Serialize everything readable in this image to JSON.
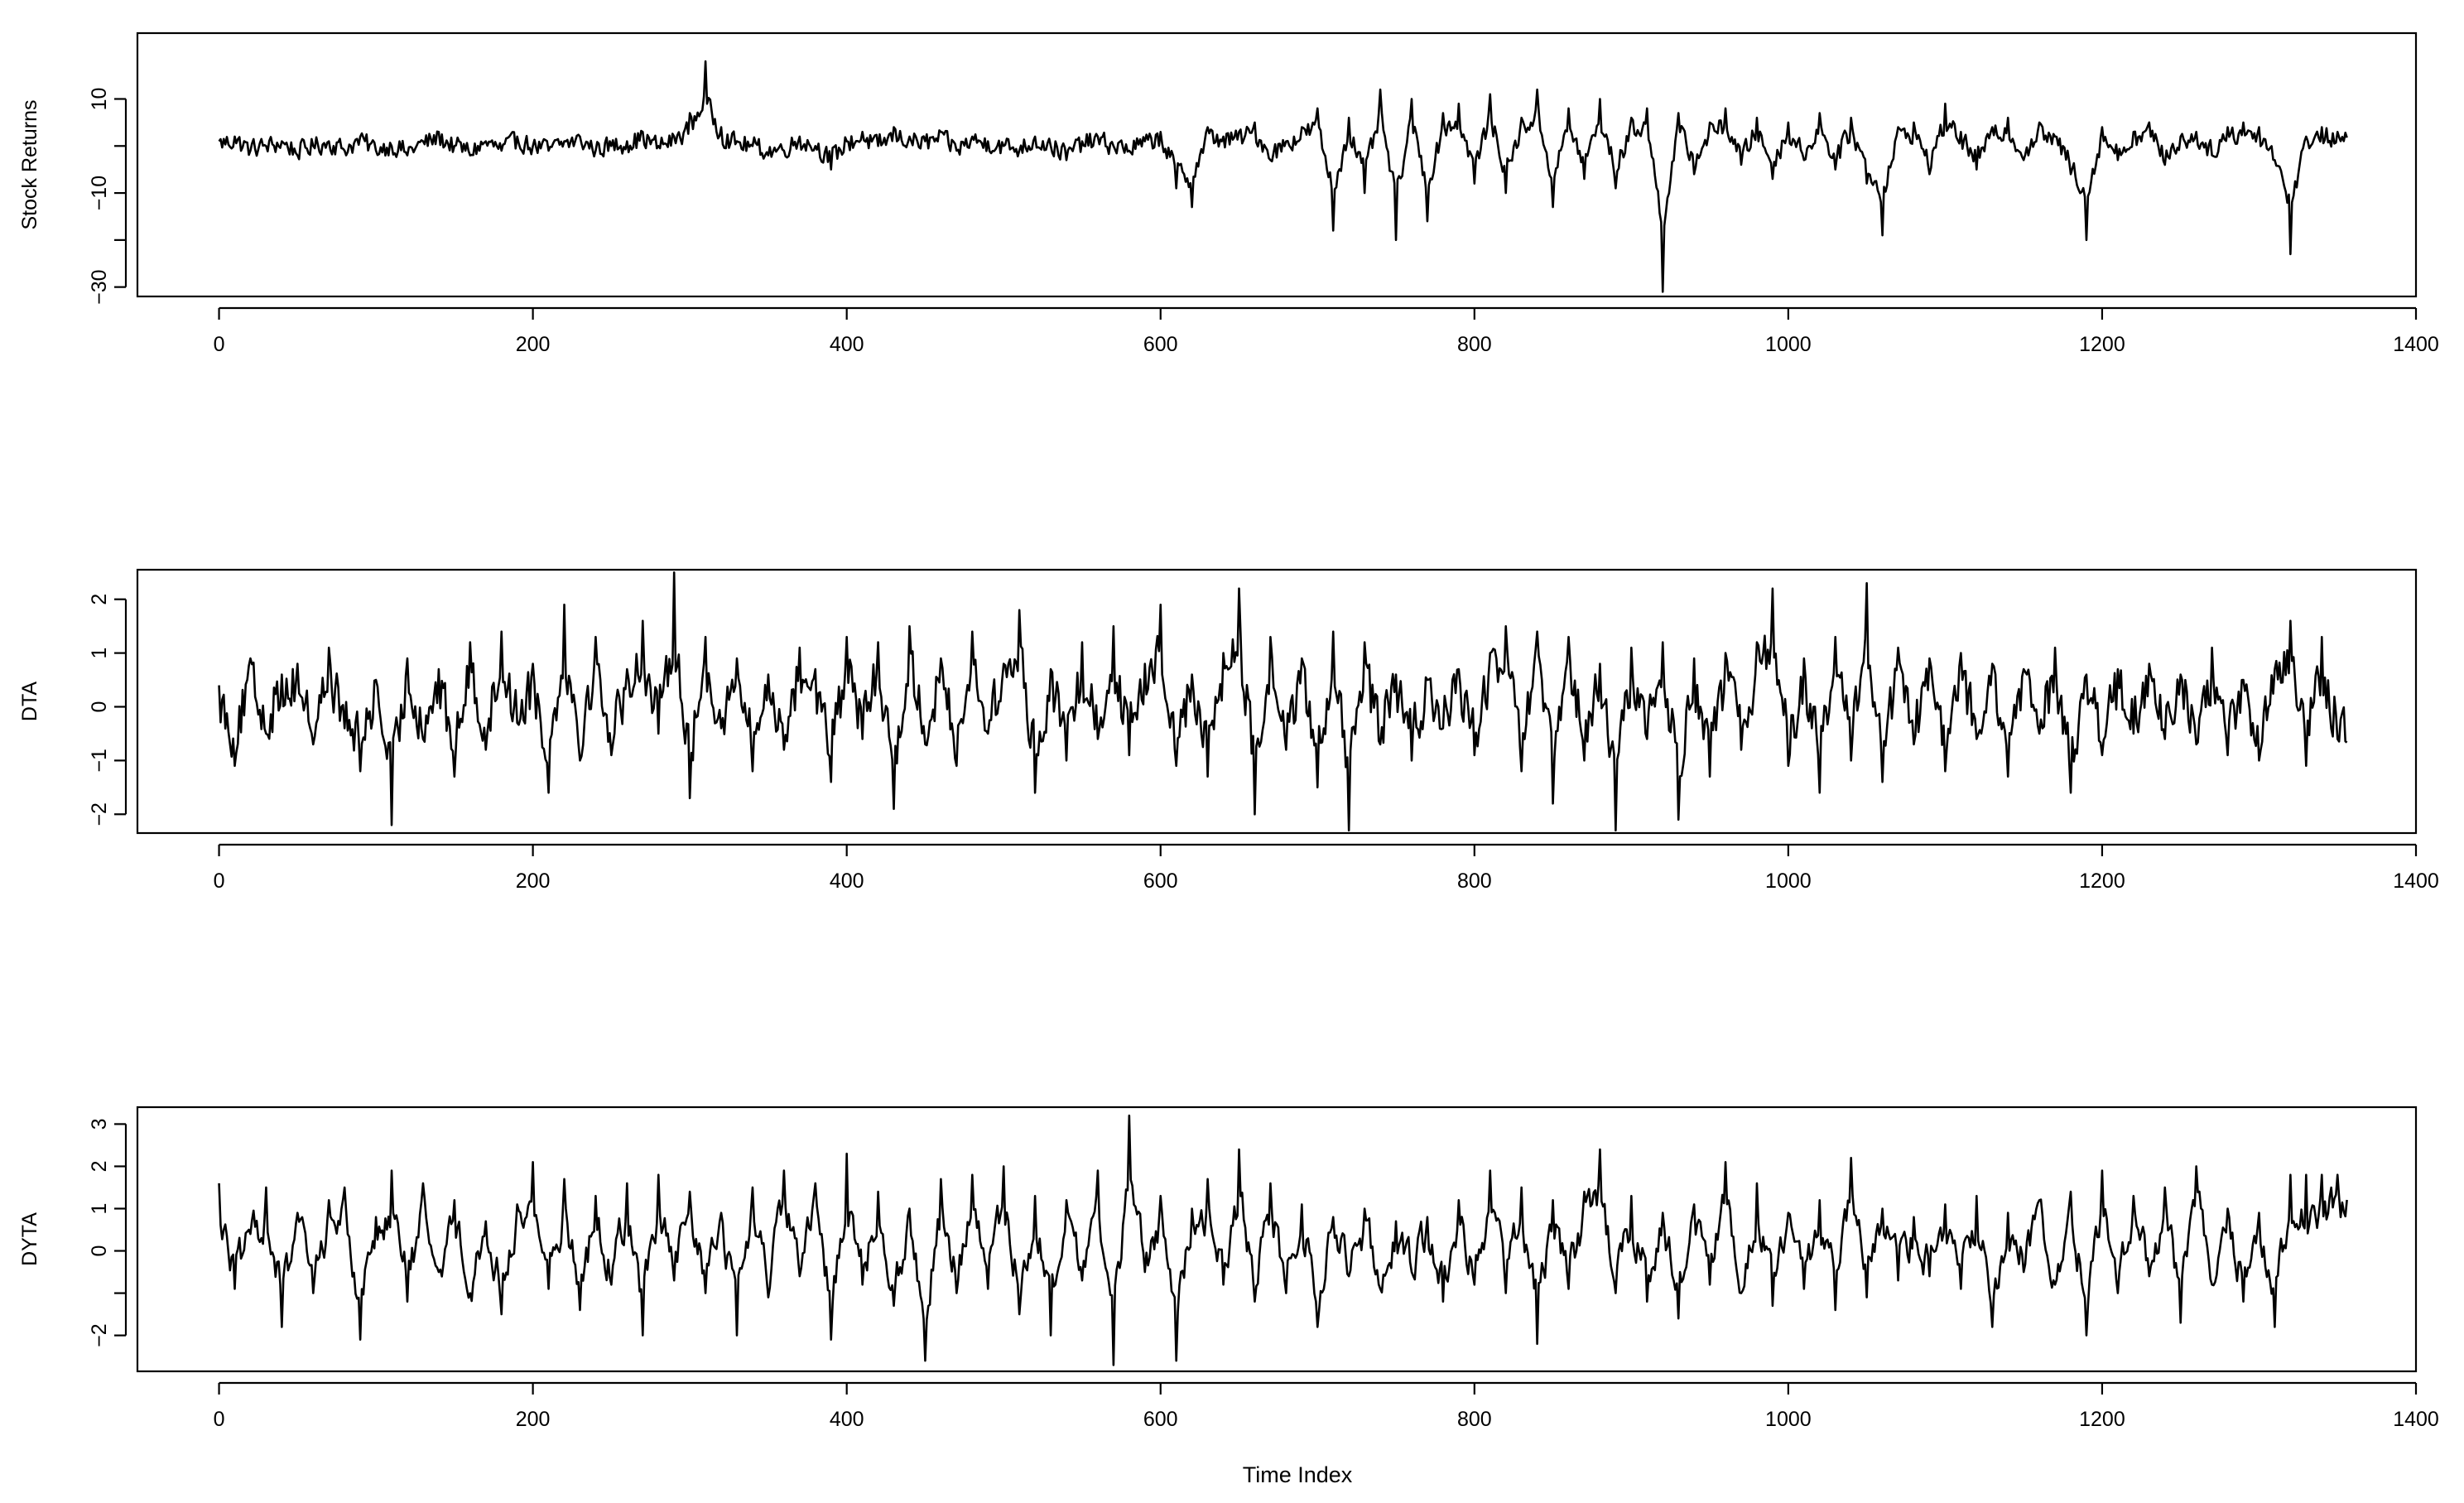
{
  "chart_data": [
    {
      "type": "line",
      "ylabel": "Stock Returns",
      "xlabel": "",
      "xlim": [
        -52,
        1400
      ],
      "ylim": [
        -32,
        24
      ],
      "xticks": [
        "0",
        "200",
        "400",
        "600",
        "800",
        "1000",
        "1200",
        "1400"
      ],
      "yticks": [
        "-30",
        "-10",
        "10"
      ],
      "yticks_minor": [
        -20,
        0
      ],
      "n_points": 1357,
      "series": [
        {
          "x_start": 0,
          "x_step": 10,
          "values": [
            1,
            2,
            -1,
            0,
            1,
            -2,
            0,
            1,
            -1,
            2,
            -1,
            0,
            -2,
            1,
            3,
            0,
            -2,
            1,
            -1,
            2,
            0,
            -1,
            1,
            2,
            -1,
            0,
            1,
            3,
            0,
            2,
            7,
            18,
            4,
            1,
            0,
            -2,
            -1,
            2,
            0,
            -5,
            1,
            3,
            0,
            4,
            2,
            1,
            3,
            -1,
            2,
            1,
            0,
            -1,
            2,
            0,
            -3,
            1,
            2,
            0,
            -1,
            1,
            3,
            -9,
            -13,
            4,
            2,
            3,
            5,
            -3,
            1,
            4,
            8,
            -18,
            6,
            -10,
            12,
            -20,
            10,
            -16,
            7,
            9,
            -8,
            11,
            -10,
            6,
            12,
            -13,
            8,
            -7,
            10,
            -9,
            6,
            8,
            -31,
            7,
            -6,
            5,
            8,
            -4,
            6,
            -7,
            5,
            -3,
            7,
            -5,
            6,
            -8,
            -19,
            4,
            5,
            -6,
            9,
            3,
            -5,
            4,
            6,
            -3,
            5,
            2,
            -6,
            -20,
            4,
            -3,
            3,
            5,
            -4,
            2,
            3,
            -2,
            4,
            5,
            4,
            -3,
            -23,
            2,
            4,
            3
          ]
        }
      ]
    },
    {
      "type": "line",
      "ylabel": "DTA",
      "xlabel": "",
      "xlim": [
        -52,
        1400
      ],
      "ylim": [
        -2.35,
        2.55
      ],
      "xticks": [
        "0",
        "200",
        "400",
        "600",
        "800",
        "1000",
        "1200",
        "1400"
      ],
      "yticks": [
        "-2",
        "-1",
        "0",
        "1",
        "2"
      ],
      "n_points": 1357,
      "series": [
        {
          "x_start": 0,
          "x_step": 10,
          "values": [
            0.4,
            -1.1,
            0.9,
            -0.5,
            0.6,
            0.8,
            -0.7,
            1.1,
            -0.4,
            -1.2,
            0.5,
            -2.2,
            0.9,
            -0.6,
            0.7,
            -1.3,
            1.2,
            -0.8,
            1.4,
            -0.3,
            0.8,
            -1.6,
            1.9,
            -1.0,
            1.3,
            -0.9,
            0.7,
            1.6,
            -0.5,
            2.5,
            -1.7,
            1.3,
            -0.4,
            0.9,
            -1.2,
            0.6,
            -0.8,
            1.1,
            0.7,
            -1.4,
            1.3,
            -0.6,
            1.2,
            -1.9,
            1.5,
            -0.7,
            0.9,
            -1.1,
            1.4,
            -0.5,
            0.8,
            1.8,
            -1.6,
            0.7,
            -1.0,
            1.2,
            -0.6,
            1.5,
            -0.9,
            0.8,
            1.9,
            -1.1,
            0.6,
            -1.3,
            1.0,
            2.2,
            -2.0,
            1.3,
            -0.8,
            0.9,
            -1.5,
            1.4,
            -2.3,
            1.2,
            -0.7,
            0.6,
            -1.0,
            0.5,
            -0.4,
            0.7,
            -0.9,
            1.0,
            1.5,
            -1.2,
            1.4,
            -1.8,
            1.3,
            -1.0,
            0.8,
            -2.3,
            1.1,
            -0.6,
            1.2,
            -2.1,
            0.9,
            -1.3,
            1.0,
            -0.8,
            1.2,
            2.2,
            -1.1,
            0.9,
            -1.6,
            1.3,
            -1.0,
            2.3,
            -1.4,
            1.1,
            -0.7,
            0.9,
            -1.2,
            1.0,
            -0.6,
            0.8,
            -1.3,
            0.7,
            -0.5,
            1.1,
            -1.6,
            0.6,
            -0.9,
            0.7,
            -0.5,
            0.8,
            -0.6,
            0.6,
            -0.7,
            1.1,
            -0.9,
            0.5,
            -1.0,
            0.7,
            1.6,
            -1.1,
            1.3,
            -0.6
          ]
        }
      ]
    },
    {
      "type": "line",
      "ylabel": "DYTA",
      "xlabel": "Time Index",
      "xlim": [
        -52,
        1400
      ],
      "ylim": [
        -2.85,
        3.4
      ],
      "xticks": [
        "0",
        "200",
        "400",
        "600",
        "800",
        "1000",
        "1200",
        "1400"
      ],
      "yticks": [
        "-2",
        "0",
        "1",
        "2",
        "3"
      ],
      "yticks_minor": [
        -1
      ],
      "n_points": 1357,
      "series": [
        {
          "x_start": 0,
          "x_step": 10,
          "values": [
            1.6,
            -0.9,
            0.4,
            1.5,
            -1.8,
            0.9,
            -1.0,
            1.2,
            1.5,
            -2.1,
            0.8,
            1.9,
            -1.2,
            1.6,
            -0.5,
            1.2,
            -1.0,
            0.7,
            -1.5,
            1.1,
            2.1,
            -0.9,
            1.7,
            -1.4,
            1.3,
            -0.8,
            1.6,
            -2.0,
            1.8,
            -0.7,
            1.4,
            -1.0,
            0.9,
            -2.0,
            1.5,
            -1.1,
            1.9,
            -0.6,
            1.6,
            -2.1,
            2.3,
            -0.8,
            1.4,
            -1.3,
            1.0,
            -2.6,
            1.7,
            -1.0,
            1.8,
            -0.9,
            2.0,
            -1.5,
            1.3,
            -2.0,
            1.2,
            -0.7,
            1.9,
            -2.7,
            3.2,
            -0.5,
            1.3,
            -2.6,
            1.0,
            1.7,
            -0.8,
            2.4,
            -1.2,
            1.6,
            -1.0,
            1.1,
            -1.8,
            0.8,
            -0.6,
            1.0,
            -0.9,
            0.7,
            -0.5,
            0.8,
            -1.2,
            1.2,
            -0.8,
            1.9,
            -1.0,
            1.5,
            -2.2,
            1.2,
            -0.9,
            1.4,
            2.4,
            -1.0,
            1.3,
            -1.2,
            0.9,
            -1.6,
            1.1,
            -0.8,
            2.1,
            -1.0,
            1.6,
            -1.3,
            0.9,
            -0.9,
            1.2,
            -1.4,
            2.2,
            -1.1,
            1.0,
            -0.7,
            0.8,
            -0.6,
            1.1,
            -0.9,
            1.3,
            -1.8,
            0.9,
            -0.5,
            1.2,
            -0.8,
            1.4,
            -2.0,
            1.9,
            -1.0,
            1.3,
            -0.6,
            1.5,
            -1.7,
            2.0,
            -0.8,
            1.0,
            -1.2,
            0.9,
            -1.8,
            1.8
          ]
        }
      ]
    }
  ]
}
